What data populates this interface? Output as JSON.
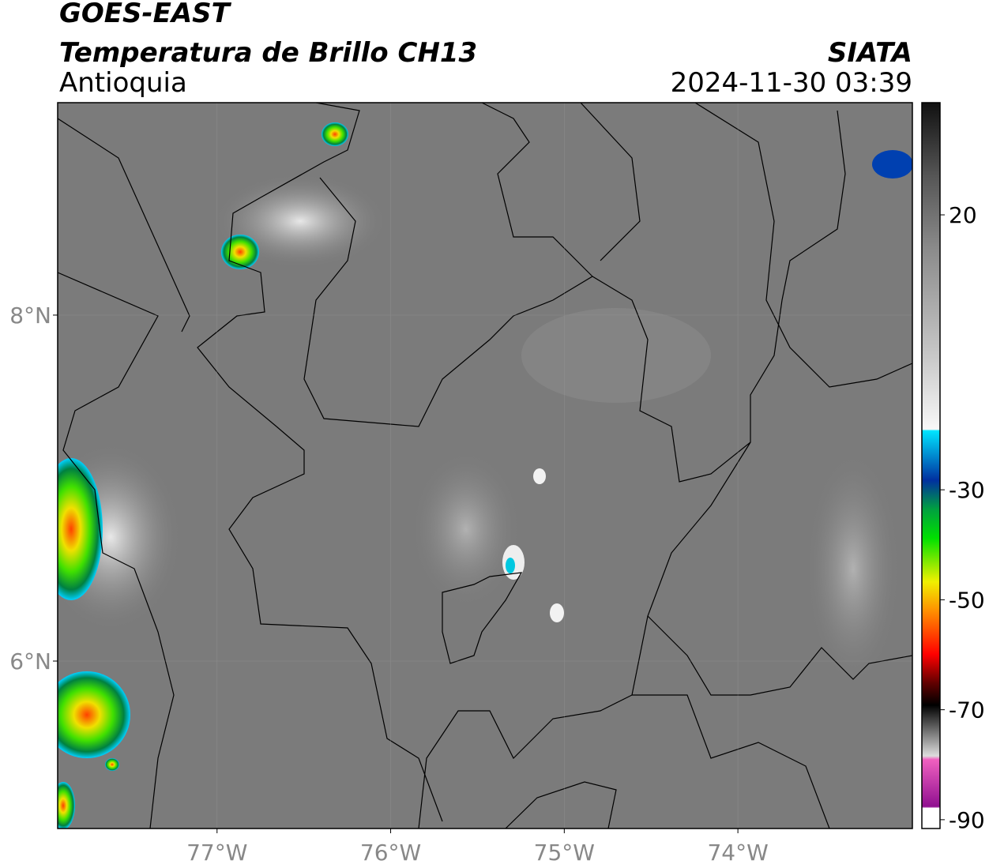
{
  "header": {
    "title": "GOES-EAST",
    "subtitle": "Temperatura de Brillo CH13",
    "region": "Antioquia",
    "source": "SIATA",
    "datetime": "2024-11-30 03:39"
  },
  "map": {
    "xlim": [
      -77.918,
      -72.995
    ],
    "ylim": [
      5.032,
      9.228
    ],
    "xticks": [
      {
        "value": -77,
        "label": "77°W"
      },
      {
        "value": -76,
        "label": "76°W"
      },
      {
        "value": -75,
        "label": "75°W"
      },
      {
        "value": -74,
        "label": "74°W"
      }
    ],
    "yticks": [
      {
        "value": 8,
        "label": "8°N"
      },
      {
        "value": 6,
        "label": "6°N"
      }
    ]
  },
  "colorbar": {
    "lim": [
      -91.6,
      40.4
    ],
    "ticks": [
      20,
      -30,
      -50,
      -70,
      -90
    ]
  }
}
